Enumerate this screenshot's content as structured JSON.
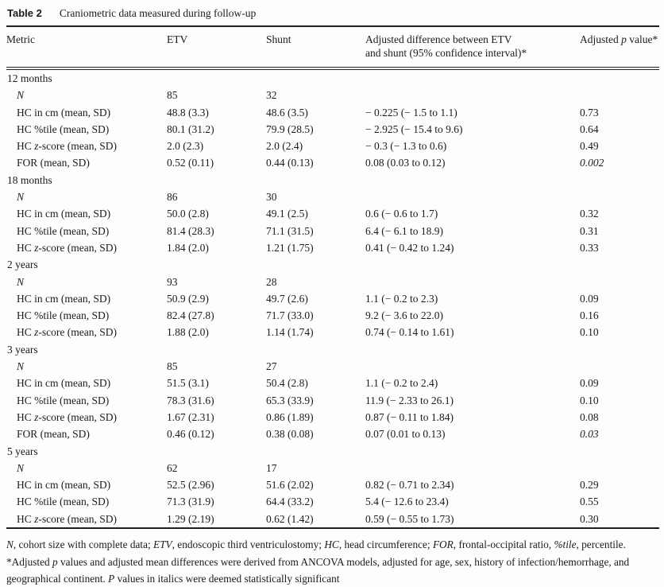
{
  "caption": {
    "label": "Table 2",
    "text": "Craniometric data measured during follow-up"
  },
  "table": {
    "columns": [
      [
        {
          "t": "Metric"
        }
      ],
      [
        {
          "t": "ETV"
        }
      ],
      [
        {
          "t": "Shunt"
        }
      ],
      [
        {
          "t": "Adjusted difference between ETV"
        },
        {
          "br": true
        },
        {
          "t": "and shunt (95% confidence interval)*"
        }
      ],
      [
        {
          "t": "Adjusted "
        },
        {
          "t": "p",
          "i": true
        },
        {
          "t": " value*"
        }
      ]
    ],
    "rows": [
      {
        "type": "group",
        "label": [
          {
            "t": "12 months"
          }
        ]
      },
      {
        "type": "data",
        "label": [
          {
            "t": "N",
            "i": true
          }
        ],
        "etv": "85",
        "shunt": "32",
        "diff": "",
        "p": "",
        "p_italic": false
      },
      {
        "type": "data",
        "label": [
          {
            "t": "HC in cm (mean, SD)"
          }
        ],
        "etv": "48.8 (3.3)",
        "shunt": "48.6 (3.5)",
        "diff": "− 0.225 (− 1.5 to 1.1)",
        "p": "0.73",
        "p_italic": false
      },
      {
        "type": "data",
        "label": [
          {
            "t": "HC %tile (mean, SD)"
          }
        ],
        "etv": "80.1 (31.2)",
        "shunt": "79.9 (28.5)",
        "diff": "− 2.925 (− 15.4 to 9.6)",
        "p": "0.64",
        "p_italic": false
      },
      {
        "type": "data",
        "label": [
          {
            "t": "HC "
          },
          {
            "t": "z",
            "i": true
          },
          {
            "t": "-score (mean, SD)"
          }
        ],
        "etv": "2.0 (2.3)",
        "shunt": "2.0 (2.4)",
        "diff": "− 0.3 (− 1.3 to 0.6)",
        "p": "0.49",
        "p_italic": false
      },
      {
        "type": "data",
        "label": [
          {
            "t": "FOR (mean, SD)"
          }
        ],
        "etv": "0.52 (0.11)",
        "shunt": "0.44 (0.13)",
        "diff": "0.08 (0.03 to 0.12)",
        "p": "0.002",
        "p_italic": true
      },
      {
        "type": "group",
        "label": [
          {
            "t": "18 months"
          }
        ]
      },
      {
        "type": "data",
        "label": [
          {
            "t": "N",
            "i": true
          }
        ],
        "etv": "86",
        "shunt": "30",
        "diff": "",
        "p": "",
        "p_italic": false
      },
      {
        "type": "data",
        "label": [
          {
            "t": "HC in cm (mean, SD)"
          }
        ],
        "etv": "50.0 (2.8)",
        "shunt": "49.1 (2.5)",
        "diff": "0.6 (− 0.6 to 1.7)",
        "p": "0.32",
        "p_italic": false
      },
      {
        "type": "data",
        "label": [
          {
            "t": "HC %tile (mean, SD)"
          }
        ],
        "etv": "81.4 (28.3)",
        "shunt": "71.1 (31.5)",
        "diff": "6.4 (− 6.1 to 18.9)",
        "p": "0.31",
        "p_italic": false
      },
      {
        "type": "data",
        "label": [
          {
            "t": "HC "
          },
          {
            "t": "z",
            "i": true
          },
          {
            "t": "-score (mean, SD)"
          }
        ],
        "etv": "1.84 (2.0)",
        "shunt": "1.21 (1.75)",
        "diff": "0.41 (− 0.42 to 1.24)",
        "p": "0.33",
        "p_italic": false
      },
      {
        "type": "group",
        "label": [
          {
            "t": "2 years"
          }
        ]
      },
      {
        "type": "data",
        "label": [
          {
            "t": "N",
            "i": true
          }
        ],
        "etv": "93",
        "shunt": "28",
        "diff": "",
        "p": "",
        "p_italic": false
      },
      {
        "type": "data",
        "label": [
          {
            "t": "HC in cm (mean, SD)"
          }
        ],
        "etv": "50.9 (2.9)",
        "shunt": "49.7 (2.6)",
        "diff": "1.1 (− 0.2 to 2.3)",
        "p": "0.09",
        "p_italic": false
      },
      {
        "type": "data",
        "label": [
          {
            "t": "HC %tile (mean, SD)"
          }
        ],
        "etv": "82.4 (27.8)",
        "shunt": "71.7 (33.0)",
        "diff": "9.2 (− 3.6 to 22.0)",
        "p": "0.16",
        "p_italic": false
      },
      {
        "type": "data",
        "label": [
          {
            "t": "HC "
          },
          {
            "t": "z",
            "i": true
          },
          {
            "t": "-score (mean, SD)"
          }
        ],
        "etv": "1.88 (2.0)",
        "shunt": "1.14 (1.74)",
        "diff": "0.74 (− 0.14 to 1.61)",
        "p": "0.10",
        "p_italic": false
      },
      {
        "type": "group",
        "label": [
          {
            "t": "3 years"
          }
        ]
      },
      {
        "type": "data",
        "label": [
          {
            "t": "N",
            "i": true
          }
        ],
        "etv": "85",
        "shunt": "27",
        "diff": "",
        "p": "",
        "p_italic": false
      },
      {
        "type": "data",
        "label": [
          {
            "t": "HC in cm (mean, SD)"
          }
        ],
        "etv": "51.5 (3.1)",
        "shunt": "50.4 (2.8)",
        "diff": "1.1 (− 0.2 to 2.4)",
        "p": "0.09",
        "p_italic": false
      },
      {
        "type": "data",
        "label": [
          {
            "t": "HC %tile (mean, SD)"
          }
        ],
        "etv": "78.3 (31.6)",
        "shunt": "65.3 (33.9)",
        "diff": "11.9 (− 2.33 to 26.1)",
        "p": "0.10",
        "p_italic": false
      },
      {
        "type": "data",
        "label": [
          {
            "t": "HC "
          },
          {
            "t": "z",
            "i": true
          },
          {
            "t": "-score (mean, SD)"
          }
        ],
        "etv": "1.67 (2.31)",
        "shunt": "0.86 (1.89)",
        "diff": "0.87 (− 0.11 to 1.84)",
        "p": "0.08",
        "p_italic": false
      },
      {
        "type": "data",
        "label": [
          {
            "t": "FOR (mean, SD)"
          }
        ],
        "etv": "0.46 (0.12)",
        "shunt": "0.38 (0.08)",
        "diff": "0.07 (0.01 to 0.13)",
        "p": "0.03",
        "p_italic": true
      },
      {
        "type": "group",
        "label": [
          {
            "t": "5 years"
          }
        ]
      },
      {
        "type": "data",
        "label": [
          {
            "t": "N",
            "i": true
          }
        ],
        "etv": "62",
        "shunt": "17",
        "diff": "",
        "p": "",
        "p_italic": false
      },
      {
        "type": "data",
        "label": [
          {
            "t": "HC in cm (mean, SD)"
          }
        ],
        "etv": "52.5 (2.96)",
        "shunt": "51.6 (2.02)",
        "diff": "0.82 (− 0.71 to 2.34)",
        "p": "0.29",
        "p_italic": false
      },
      {
        "type": "data",
        "label": [
          {
            "t": "HC %tile (mean, SD)"
          }
        ],
        "etv": "71.3 (31.9)",
        "shunt": "64.4 (33.2)",
        "diff": "5.4 (− 12.6 to 23.4)",
        "p": "0.55",
        "p_italic": false
      },
      {
        "type": "data",
        "label": [
          {
            "t": "HC "
          },
          {
            "t": "z",
            "i": true
          },
          {
            "t": "-score (mean, SD)"
          }
        ],
        "etv": "1.29 (2.19)",
        "shunt": "0.62 (1.42)",
        "diff": "0.59 (− 0.55 to 1.73)",
        "p": "0.30",
        "p_italic": false
      }
    ]
  },
  "footnotes": [
    [
      {
        "t": "N",
        "i": true
      },
      {
        "t": ", cohort size with complete data; "
      },
      {
        "t": "ETV",
        "i": true
      },
      {
        "t": ", endoscopic third ventriculostomy; "
      },
      {
        "t": "HC",
        "i": true
      },
      {
        "t": ", head circumference; "
      },
      {
        "t": "FOR",
        "i": true
      },
      {
        "t": ", frontal-occipital ratio, "
      },
      {
        "t": "%tile",
        "i": true
      },
      {
        "t": ", percentile."
      }
    ],
    [
      {
        "t": "*Adjusted "
      },
      {
        "t": "p",
        "i": true
      },
      {
        "t": " values and adjusted mean differences were derived from ANCOVA models, adjusted for age, sex, history of infection/hemorrhage, and geographical continent. "
      },
      {
        "t": "P",
        "i": true
      },
      {
        "t": " values in italics were deemed statistically significant"
      }
    ]
  ]
}
